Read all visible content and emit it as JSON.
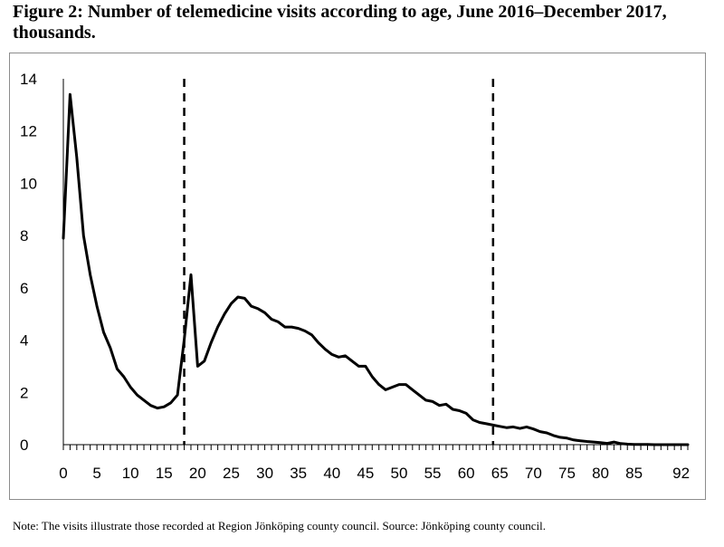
{
  "title": "Figure 2: Number of telemedicine visits according to age, June 2016–December 2017, thousands.",
  "note": "Note: The visits illustrate those recorded at Region Jönköping county council. Source: Jönköping county council.",
  "chart_data": {
    "type": "line",
    "title": "Figure 2: Number of telemedicine visits according to age, June 2016–December 2017, thousands.",
    "xlabel": "",
    "ylabel": "",
    "xlim": [
      0,
      93
    ],
    "ylim": [
      0,
      14
    ],
    "x_ticks": [
      0,
      5,
      10,
      15,
      20,
      25,
      30,
      35,
      40,
      45,
      50,
      55,
      60,
      65,
      70,
      75,
      80,
      85,
      92
    ],
    "y_ticks": [
      0,
      2,
      4,
      6,
      8,
      10,
      12,
      14
    ],
    "grid": false,
    "legend": "none",
    "reference_lines_x": [
      18,
      64
    ],
    "series": [
      {
        "color": "#000000",
        "x": [
          0,
          1,
          2,
          3,
          4,
          5,
          6,
          7,
          8,
          9,
          10,
          11,
          12,
          13,
          14,
          15,
          16,
          17,
          18,
          19,
          20,
          21,
          22,
          23,
          24,
          25,
          26,
          27,
          28,
          29,
          30,
          31,
          32,
          33,
          34,
          35,
          36,
          37,
          38,
          39,
          40,
          41,
          42,
          43,
          44,
          45,
          46,
          47,
          48,
          49,
          50,
          51,
          52,
          53,
          54,
          55,
          56,
          57,
          58,
          59,
          60,
          61,
          62,
          63,
          64,
          65,
          66,
          67,
          68,
          69,
          70,
          71,
          72,
          73,
          74,
          75,
          76,
          77,
          78,
          79,
          80,
          81,
          82,
          83,
          84,
          85,
          86,
          87,
          88,
          89,
          90,
          91,
          92,
          93
        ],
        "values": [
          7.9,
          13.4,
          11.0,
          8.0,
          6.5,
          5.3,
          4.3,
          3.7,
          2.9,
          2.6,
          2.2,
          1.9,
          1.7,
          1.5,
          1.4,
          1.45,
          1.6,
          1.9,
          4.0,
          6.5,
          3.0,
          3.2,
          3.9,
          4.5,
          5.0,
          5.4,
          5.65,
          5.6,
          5.3,
          5.2,
          5.05,
          4.8,
          4.7,
          4.5,
          4.5,
          4.45,
          4.35,
          4.2,
          3.9,
          3.65,
          3.45,
          3.35,
          3.4,
          3.2,
          3.0,
          3.0,
          2.6,
          2.3,
          2.1,
          2.2,
          2.3,
          2.3,
          2.1,
          1.9,
          1.7,
          1.65,
          1.5,
          1.55,
          1.35,
          1.3,
          1.2,
          0.95,
          0.85,
          0.8,
          0.75,
          0.7,
          0.65,
          0.68,
          0.62,
          0.68,
          0.6,
          0.5,
          0.45,
          0.35,
          0.28,
          0.25,
          0.18,
          0.15,
          0.12,
          0.1,
          0.08,
          0.05,
          0.1,
          0.04,
          0.02,
          0.01,
          0.01,
          0.01,
          0.0,
          0.0,
          0.0,
          0.0,
          0.0,
          0.0
        ]
      }
    ]
  }
}
